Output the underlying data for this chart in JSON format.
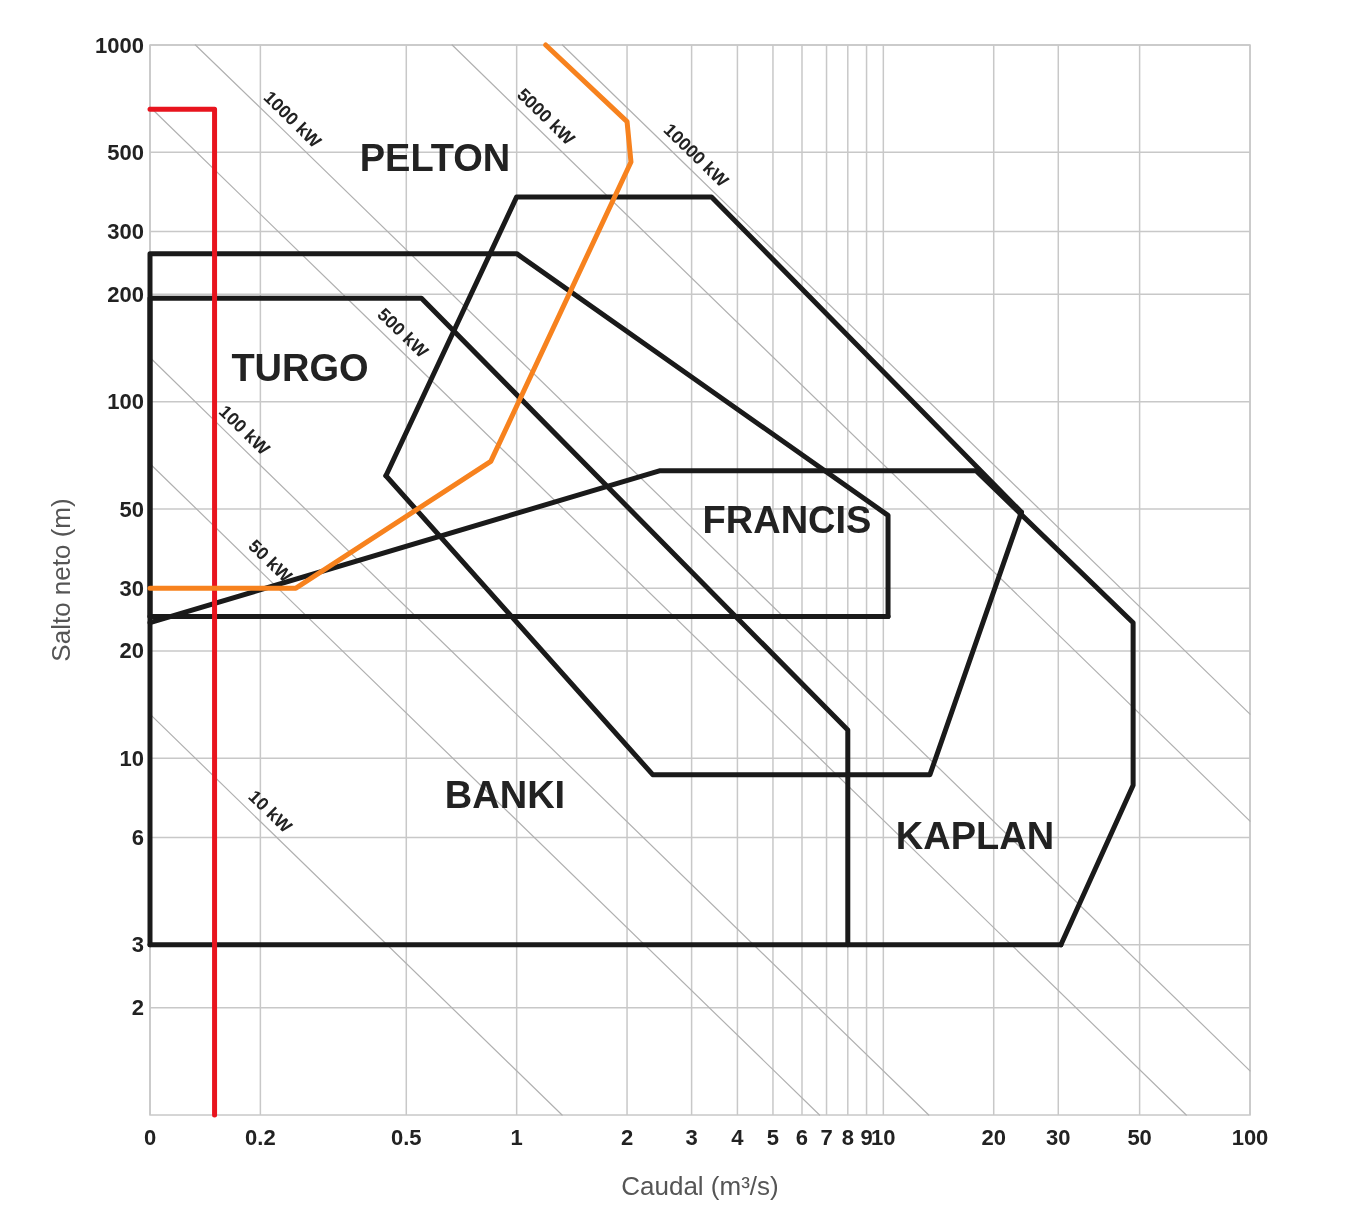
{
  "chart_data": {
    "type": "line",
    "xlabel": "Caudal (m³/s)",
    "ylabel": "Salto neto (m)",
    "log": "xy",
    "grid": "xy",
    "xlim": [
      0.1,
      100
    ],
    "ylim": [
      1,
      1000
    ],
    "xticks": [
      {
        "value": 0.1,
        "label": "0"
      },
      0.2,
      0.5,
      1,
      2,
      3,
      4,
      5,
      6,
      7,
      8,
      9,
      10,
      20,
      30,
      50,
      100
    ],
    "yticks": [
      2,
      3,
      6,
      10,
      20,
      30,
      50,
      100,
      200,
      300,
      500,
      1000
    ],
    "series": [
      {
        "name": "10 kW",
        "color": "#b0b0b0",
        "x": [
          0.1,
          0.2,
          1.33
        ],
        "values": [
          13.3,
          6.65,
          1
        ]
      },
      {
        "name": "50 kW",
        "color": "#b0b0b0",
        "x": [
          0.1,
          0.2,
          6.7
        ],
        "values": [
          67,
          33.5,
          1
        ]
      },
      {
        "name": "100 kW",
        "color": "#b0b0b0",
        "x": [
          0.1,
          0.17,
          13.3
        ],
        "values": [
          133,
          78,
          1
        ]
      },
      {
        "name": "500 kW",
        "color": "#b0b0b0",
        "x": [
          0.1,
          0.46,
          67
        ],
        "values": [
          670,
          146,
          1
        ]
      },
      {
        "name": "1000 kW",
        "color": "#b0b0b0",
        "x": [
          0.133,
          0.23,
          100
        ],
        "values": [
          1000,
          580,
          1.33
        ]
      },
      {
        "name": "5000 kW",
        "color": "#b0b0b0",
        "x": [
          0.667,
          1.13,
          100
        ],
        "values": [
          1000,
          590,
          6.67
        ]
      },
      {
        "name": "10000 kW",
        "color": "#b0b0b0",
        "x": [
          1.333,
          2.9,
          100
        ],
        "values": [
          1000,
          460,
          13.3
        ]
      },
      {
        "color": "#1a1a1a",
        "x": [
          0.1,
          0.1,
          1,
          10.3,
          10.3
        ],
        "values": [
          25,
          260,
          260,
          48,
          25
        ]
      },
      {
        "color": "#1a1a1a",
        "x": [
          0.1,
          10.3
        ],
        "values": [
          25,
          25
        ]
      },
      {
        "color": "#1a1a1a",
        "x": [
          0.1,
          0.1,
          0.55,
          8.0,
          8.0
        ],
        "values": [
          3,
          195,
          195,
          12,
          3
        ]
      },
      {
        "color": "#1a1a1a",
        "x": [
          0.1,
          30.5
        ],
        "values": [
          3,
          3
        ]
      },
      {
        "color": "#1a1a1a",
        "x": [
          0.44,
          1,
          3.4,
          23.8
        ],
        "values": [
          62,
          375,
          375,
          49
        ]
      },
      {
        "color": "#1a1a1a",
        "x": [
          0.44,
          2.35,
          13.4,
          23.8
        ],
        "values": [
          62,
          9,
          9,
          49
        ]
      },
      {
        "color": "#1a1a1a",
        "x": [
          0.1,
          2.45,
          17.9,
          48,
          48,
          30.5
        ],
        "values": [
          24,
          64,
          64,
          24,
          8.4,
          3
        ]
      },
      {
        "color": "#e8141e",
        "x": [
          0.1,
          0.15,
          0.15
        ],
        "values": [
          660,
          660,
          1
        ]
      },
      {
        "color": "#f7821e",
        "x": [
          1.2,
          2.0,
          2.05,
          0.85,
          0.25,
          0.1
        ],
        "values": [
          1000,
          610,
          470,
          68,
          30,
          30
        ]
      }
    ],
    "annotations": [
      "PELTON",
      "TURGO",
      "FRANCIS",
      "BANKI",
      "KAPLAN"
    ]
  }
}
